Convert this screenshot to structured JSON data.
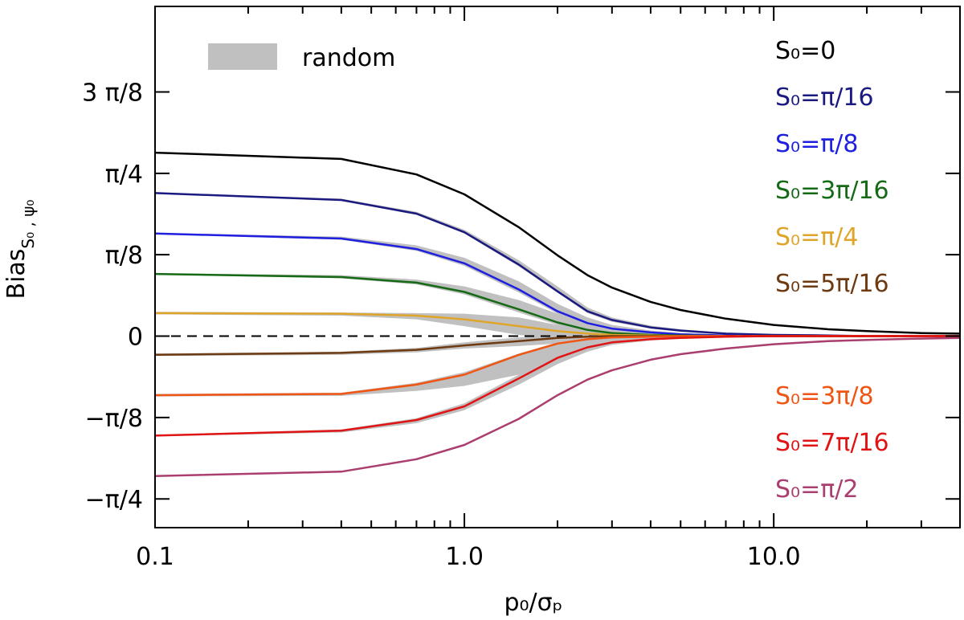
{
  "chart_data": {
    "type": "line",
    "xscale": "log",
    "xlim": [
      0.1,
      40
    ],
    "ylim": [
      -0.308,
      0.5302
    ],
    "xlabel": "p₀/σₚ",
    "ylabel_main": "Bias",
    "ylabel_sub": "S₀ , ψ₀",
    "x_ticks": [
      {
        "value": 0.1,
        "label": "0.1"
      },
      {
        "value": 1.0,
        "label": "1.0"
      },
      {
        "value": 10.0,
        "label": "10.0"
      }
    ],
    "y_ticks": [
      {
        "value": -0.2618,
        "label": "−π/4"
      },
      {
        "value": -0.1309,
        "label": "−π/8"
      },
      {
        "value": 0,
        "label": "0"
      },
      {
        "value": 0.1309,
        "label": "π/8"
      },
      {
        "value": 0.2618,
        "label": "π/4"
      },
      {
        "value": 0.3927,
        "label": "3 π/8"
      }
    ],
    "zero_line": "dashed",
    "band_legend": {
      "label": "random",
      "color": "#c0c0c0"
    },
    "x": [
      0.1,
      0.4,
      0.7,
      1.0,
      1.5,
      2.0,
      2.5,
      3.0,
      4.0,
      5.0,
      7.0,
      10.0,
      15.0,
      20.0,
      30.0,
      40.0
    ],
    "series": [
      {
        "name": "S₀=0",
        "color": "#000000",
        "legend_pos": "upper",
        "values": [
          0.295,
          0.285,
          0.26,
          0.228,
          0.175,
          0.13,
          0.098,
          0.078,
          0.055,
          0.042,
          0.028,
          0.018,
          0.011,
          0.008,
          0.005,
          0.004
        ]
      },
      {
        "name": "S₀=π/16",
        "color": "#1a1a80",
        "legend_pos": "upper",
        "values": [
          0.23,
          0.219,
          0.197,
          0.167,
          0.115,
          0.072,
          0.04,
          0.026,
          0.014,
          0.009,
          0.004,
          0.002,
          0.001,
          0,
          0,
          0
        ]
      },
      {
        "name": "S₀=π/8",
        "color": "#1f1fe0",
        "legend_pos": "upper",
        "values": [
          0.165,
          0.157,
          0.14,
          0.117,
          0.075,
          0.04,
          0.021,
          0.012,
          0.006,
          0.003,
          0.001,
          0,
          0,
          0,
          0,
          0
        ]
      },
      {
        "name": "S₀=3π/16",
        "color": "#156a15",
        "legend_pos": "upper",
        "values": [
          0.1,
          0.095,
          0.086,
          0.071,
          0.043,
          0.022,
          0.01,
          0.005,
          0.002,
          0.001,
          0,
          0,
          0,
          0,
          0,
          0
        ]
      },
      {
        "name": "S₀=π/4",
        "color": "#dfa52a",
        "legend_pos": "upper",
        "values": [
          0.037,
          0.036,
          0.033,
          0.027,
          0.016,
          0.008,
          0.004,
          0.002,
          0.001,
          0,
          0,
          0,
          0,
          0,
          0,
          0
        ]
      },
      {
        "name": "S₀=5π/16",
        "color": "#6e3a12",
        "legend_pos": "upper",
        "values": [
          -0.03,
          -0.027,
          -0.022,
          -0.015,
          -0.008,
          -0.003,
          -0.001,
          0,
          0,
          0,
          0,
          0,
          0,
          0,
          0,
          0
        ]
      },
      {
        "name": "S₀=3π/8",
        "color": "#f05514",
        "legend_pos": "lower",
        "values": [
          -0.095,
          -0.093,
          -0.078,
          -0.062,
          -0.03,
          -0.012,
          -0.005,
          -0.002,
          -0.001,
          0,
          0,
          0,
          0,
          0,
          0,
          0
        ]
      },
      {
        "name": "S₀=7π/16",
        "color": "#e01414",
        "legend_pos": "lower",
        "values": [
          -0.16,
          -0.152,
          -0.135,
          -0.113,
          -0.068,
          -0.035,
          -0.018,
          -0.01,
          -0.005,
          -0.003,
          -0.001,
          0,
          0,
          0,
          0,
          0
        ]
      },
      {
        "name": "S₀=π/2",
        "color": "#aa3e6e",
        "legend_pos": "lower",
        "values": [
          -0.225,
          -0.218,
          -0.198,
          -0.175,
          -0.133,
          -0.095,
          -0.07,
          -0.055,
          -0.038,
          -0.029,
          -0.02,
          -0.013,
          -0.008,
          -0.006,
          -0.004,
          -0.003
        ]
      }
    ],
    "bands": [
      {
        "lower": [
          0.229,
          0.218,
          0.195,
          0.165,
          0.112,
          0.07,
          0.037,
          0.023,
          0.012,
          0.007,
          0.003,
          0.001,
          0,
          0,
          0,
          0
        ],
        "upper": [
          0.231,
          0.221,
          0.2,
          0.171,
          0.122,
          0.08,
          0.046,
          0.03,
          0.017,
          0.011,
          0.005,
          0.003,
          0.001,
          0,
          0,
          0
        ]
      },
      {
        "lower": [
          0.164,
          0.155,
          0.137,
          0.113,
          0.07,
          0.036,
          0.018,
          0.009,
          0.004,
          0.002,
          0.001,
          0,
          0,
          0,
          0,
          0
        ],
        "upper": [
          0.166,
          0.16,
          0.146,
          0.126,
          0.088,
          0.052,
          0.03,
          0.018,
          0.009,
          0.005,
          0.002,
          0.001,
          0,
          0,
          0,
          0
        ]
      },
      {
        "lower": [
          0.099,
          0.093,
          0.083,
          0.067,
          0.038,
          0.018,
          0.007,
          0.003,
          0.001,
          0,
          0,
          0,
          0,
          0,
          0,
          0
        ],
        "upper": [
          0.101,
          0.098,
          0.091,
          0.08,
          0.058,
          0.036,
          0.02,
          0.011,
          0.005,
          0.002,
          0.001,
          0,
          0,
          0,
          0,
          0
        ]
      },
      {
        "lower": [
          0.035,
          0.033,
          0.027,
          0.016,
          0.002,
          -0.004,
          -0.004,
          -0.003,
          -0.002,
          -0.001,
          0,
          0,
          0,
          0,
          0,
          0
        ],
        "upper": [
          0.039,
          0.038,
          0.037,
          0.036,
          0.03,
          0.018,
          0.009,
          0.004,
          0.002,
          0.001,
          0,
          0,
          0,
          0,
          0,
          0
        ]
      },
      {
        "lower": [
          -0.032,
          -0.03,
          -0.026,
          -0.02,
          -0.016,
          -0.012,
          -0.008,
          -0.005,
          -0.002,
          -0.001,
          0,
          0,
          0,
          0,
          0,
          0
        ],
        "upper": [
          -0.028,
          -0.025,
          -0.019,
          -0.01,
          -0.002,
          0.002,
          0.002,
          0.001,
          0,
          0,
          0,
          0,
          0,
          0,
          0,
          0
        ]
      },
      {
        "lower": [
          -0.097,
          -0.096,
          -0.088,
          -0.08,
          -0.062,
          -0.04,
          -0.022,
          -0.012,
          -0.006,
          -0.003,
          -0.001,
          0,
          0,
          0,
          0,
          0
        ],
        "upper": [
          -0.093,
          -0.091,
          -0.075,
          -0.058,
          -0.028,
          -0.01,
          -0.003,
          -0.001,
          0,
          0,
          0,
          0,
          0,
          0,
          0,
          0
        ]
      },
      {
        "lower": [
          -0.161,
          -0.155,
          -0.14,
          -0.119,
          -0.078,
          -0.045,
          -0.025,
          -0.014,
          -0.007,
          -0.004,
          -0.001,
          0,
          0,
          0,
          0,
          0
        ],
        "upper": [
          -0.159,
          -0.15,
          -0.132,
          -0.108,
          -0.062,
          -0.03,
          -0.015,
          -0.008,
          -0.004,
          -0.002,
          -0.001,
          0,
          0,
          0,
          0,
          0
        ]
      }
    ]
  }
}
